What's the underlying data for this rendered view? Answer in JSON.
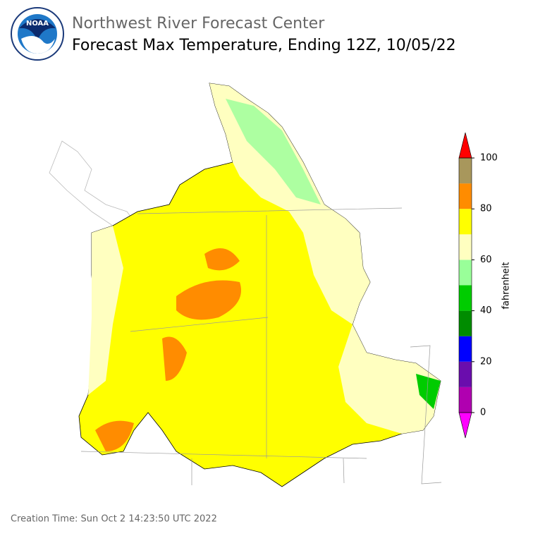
{
  "header": {
    "title": "Northwest River Forecast Center",
    "subtitle": "Forecast Max Temperature, Ending 12Z, 10/05/22",
    "logo_text": "NOAA"
  },
  "colorbar": {
    "label": "fahrenheit",
    "lim": [
      0,
      100
    ],
    "ticks": [
      0,
      20,
      40,
      60,
      80,
      100
    ],
    "bounds": [
      0,
      10,
      20,
      30,
      40,
      50,
      60,
      70,
      80,
      90,
      100
    ],
    "colors": [
      "#b000b0",
      "#6a0dad",
      "#0000ff",
      "#008c00",
      "#00cc00",
      "#99ff99",
      "#ffffc0",
      "#ffff00",
      "#ff8c00",
      "#a8975c"
    ],
    "under_color": "#ff00ff",
    "over_color": "#ff0000"
  },
  "footer": {
    "creation_time": "Creation Time: Sun Oct 2 14:23:50 UTC 2022"
  }
}
